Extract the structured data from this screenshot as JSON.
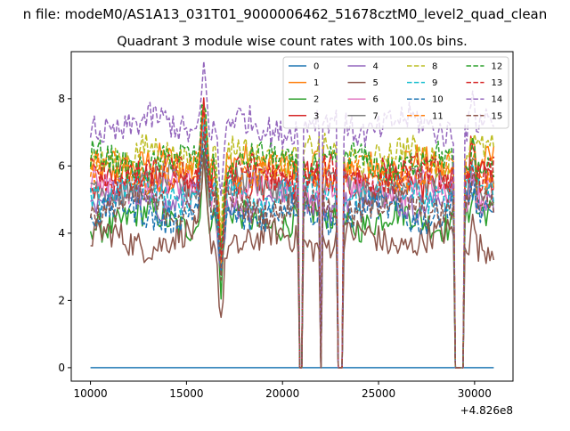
{
  "chart_data": {
    "type": "line",
    "suptitle": "n file: modeM0/AS1A13_031T01_9000006462_51678cztM0_level2_quad_clean",
    "title": "Quadrant 3 module wise count rates with 100.0s bins.",
    "xlabel": "",
    "ylabel": "",
    "xlim": [
      9000,
      32000
    ],
    "ylim": [
      -0.4,
      9.4
    ],
    "x_offset_label": "+4.826e8",
    "xticks": [
      10000,
      15000,
      20000,
      25000,
      30000
    ],
    "xtick_labels": [
      "10000",
      "15000",
      "20000",
      "25000",
      "30000"
    ],
    "yticks": [
      0,
      2,
      4,
      6,
      8
    ],
    "ytick_labels": [
      "0",
      "2",
      "4",
      "6",
      "8"
    ],
    "grid": false,
    "legend_placement": "top-right",
    "legend_columns": 4,
    "x_range": [
      10000,
      31000
    ],
    "gaps": [
      {
        "from": 20900,
        "to": 21050
      },
      {
        "from": 21950,
        "to": 22050
      },
      {
        "from": 22850,
        "to": 23150
      },
      {
        "from": 28950,
        "to": 29400
      }
    ],
    "series": [
      {
        "name": "0",
        "color": "#1f77b4",
        "dashed": false,
        "level": 0.0
      },
      {
        "name": "1",
        "color": "#ff7f0e",
        "dashed": false,
        "level": 6.0
      },
      {
        "name": "2",
        "color": "#2ca02c",
        "dashed": false,
        "level": 4.4
      },
      {
        "name": "3",
        "color": "#d62728",
        "dashed": false,
        "level": 5.6
      },
      {
        "name": "4",
        "color": "#9467bd",
        "dashed": false,
        "level": 5.0
      },
      {
        "name": "5",
        "color": "#8c564b",
        "dashed": false,
        "level": 3.8
      },
      {
        "name": "6",
        "color": "#e377c2",
        "dashed": false,
        "level": 5.3
      },
      {
        "name": "7",
        "color": "#7f7f7f",
        "dashed": false,
        "level": 5.4
      },
      {
        "name": "8",
        "color": "#bcbd22",
        "dashed": true,
        "level": 6.3
      },
      {
        "name": "9",
        "color": "#17becf",
        "dashed": true,
        "level": 5.2
      },
      {
        "name": "10",
        "color": "#1f77b4",
        "dashed": true,
        "level": 4.6
      },
      {
        "name": "11",
        "color": "#ff7f0e",
        "dashed": true,
        "level": 5.8
      },
      {
        "name": "12",
        "color": "#2ca02c",
        "dashed": true,
        "level": 6.1
      },
      {
        "name": "13",
        "color": "#d62728",
        "dashed": true,
        "level": 5.7
      },
      {
        "name": "14",
        "color": "#9467bd",
        "dashed": true,
        "level": 7.2
      },
      {
        "name": "15",
        "color": "#8c564b",
        "dashed": true,
        "level": 4.8
      }
    ]
  }
}
